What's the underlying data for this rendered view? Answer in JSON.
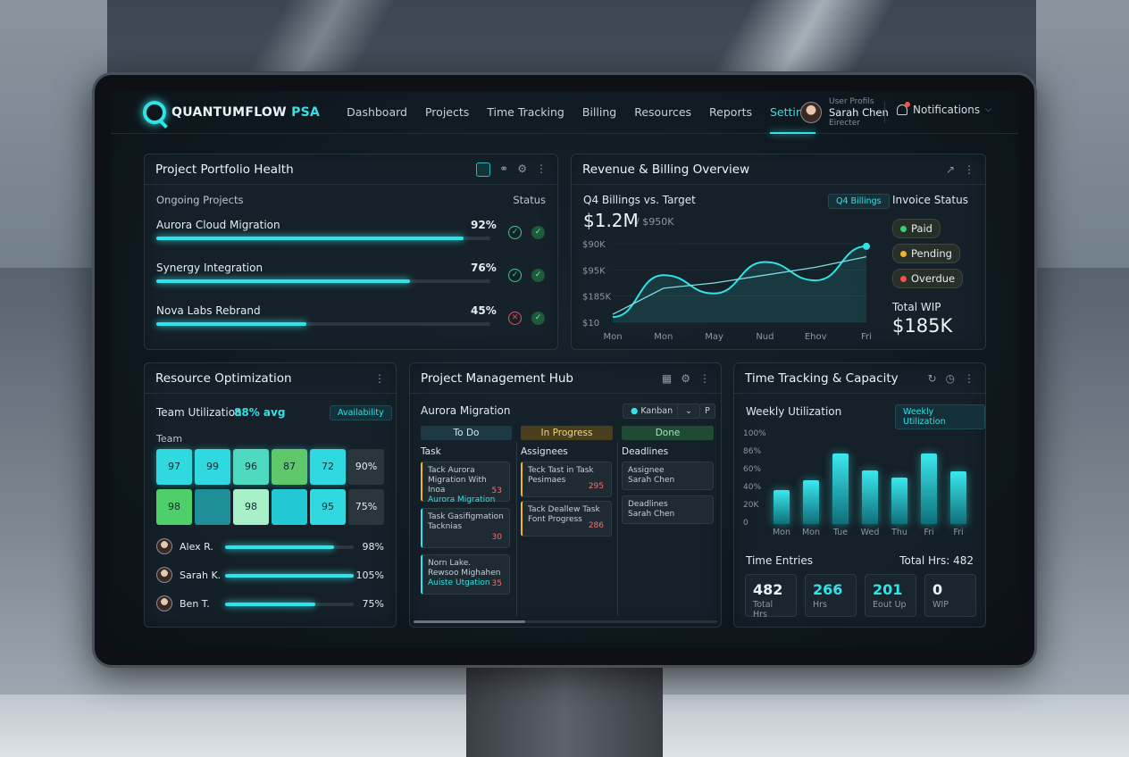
{
  "app": {
    "brand": "QUANTUMFLOW",
    "brand_suffix": "PSA"
  },
  "nav": {
    "items": [
      "Dashboard",
      "Projects",
      "Time Tracking",
      "Billing",
      "Resources",
      "Reports",
      "Settings"
    ],
    "active": "Settings"
  },
  "user": {
    "caption": "User Profils",
    "name": "Sarah Chen",
    "role": "Eirecter",
    "notifications_label": "Notifications"
  },
  "portfolio": {
    "title": "Project Portfolio Health",
    "col_left": "Ongoing Projects",
    "col_right": "Status",
    "projects": [
      {
        "name": "Aurora Cloud Migration",
        "pct": "92%",
        "fill": 0.92,
        "status": "ok"
      },
      {
        "name": "Synergy Integration",
        "pct": "76%",
        "fill": 0.76,
        "status": "ok"
      },
      {
        "name": "Nova Labs Rebrand",
        "pct": "45%",
        "fill": 0.45,
        "status": "error"
      }
    ]
  },
  "revenue": {
    "title": "Revenue & Billing Overview",
    "subtitle": "Q4 Billings vs. Target",
    "chip": "Q4 Billings",
    "amount": "$1.2M",
    "target": "/ $950K",
    "invoice_title": "Invoice Status",
    "invoice": [
      {
        "label": "Paid",
        "color": "#3ad07a"
      },
      {
        "label": "Pending",
        "color": "#f0b429"
      },
      {
        "label": "Overdue",
        "color": "#ff4b4b"
      }
    ],
    "wip_label": "Total WIP",
    "wip_value": "$185K"
  },
  "chart_data": {
    "type": "line",
    "x": [
      "Mon",
      "Mon",
      "May",
      "Nud",
      "Ehov",
      "Fri"
    ],
    "y_ticks": [
      "$90K",
      "$95K",
      "$185K",
      "$10"
    ],
    "series": [
      {
        "values": [
          0.2,
          1.8,
          1.1,
          2.3,
          1.6,
          2.9
        ]
      },
      {
        "values": [
          0.3,
          1.3,
          1.5,
          1.8,
          2.1,
          2.5
        ]
      }
    ]
  },
  "resources": {
    "title": "Resource Optimization",
    "util_label": "Team Utilization",
    "util_value": "88% avg",
    "chip": "Availability",
    "team_label": "Team",
    "heat_row1": [
      "97",
      "99",
      "96",
      "87",
      "72"
    ],
    "heat_row1_end": "90%",
    "heat_row2": [
      "98",
      "",
      "98",
      "",
      "95"
    ],
    "heat_row2_end": "75%",
    "people": [
      {
        "name": "Alex R.",
        "pct": "98%",
        "fill": 0.85
      },
      {
        "name": "Sarah K.",
        "pct": "105%",
        "fill": 1.0
      },
      {
        "name": "Ben T.",
        "pct": "75%",
        "fill": 0.7
      }
    ]
  },
  "hub": {
    "title": "Project Management Hub",
    "project": "Aurora Migration",
    "view": "Kanban",
    "view_btn2": "P",
    "columns": [
      "To Do",
      "In Progress",
      "Done"
    ],
    "sub_headers": [
      "Task",
      "Assignees",
      "Deadlines"
    ],
    "todo": [
      {
        "t": "Tack Aurora Migration With Inoa",
        "s": "Aurora Migration",
        "n": "53"
      },
      {
        "t": "Task Gasifigmation Tacknias",
        "s": "",
        "n": "30"
      },
      {
        "t": "Norn Lake. Rewsoo Mighahen",
        "s": "Auiste Utgation",
        "n": "35"
      }
    ],
    "progress": [
      {
        "t": "Teck Tast in Task Pesimaes",
        "n": "295"
      },
      {
        "t": "Tack Deallew Task Font Progress",
        "n": "286"
      }
    ],
    "done": [
      {
        "t": "Assignee",
        "s": "Sarah Chen"
      },
      {
        "t": "Deadlines",
        "s": "Sarah Chen"
      }
    ]
  },
  "time": {
    "title": "Time Tracking & Capacity",
    "weekly": "Weekly Utilization",
    "chip": "Weekly Utilization",
    "y_ticks": [
      "100%",
      "86%",
      "60%",
      "40%",
      "20K",
      "0"
    ],
    "days": [
      "Mon",
      "Mon",
      "Tue",
      "Wed",
      "Thu",
      "Fri",
      "Fri"
    ],
    "bars": [
      0.38,
      0.49,
      0.79,
      0.6,
      0.52,
      0.79,
      0.59
    ],
    "bars2": [
      0.28,
      0,
      0,
      0,
      0,
      0,
      0
    ],
    "entries_label": "Time Entries",
    "total": "Total Hrs: 482",
    "stats": [
      {
        "v": "482",
        "k": "Total Hrs",
        "c": "#e9f2f6"
      },
      {
        "v": "266",
        "k": "Hrs",
        "c": "#2fe3e8"
      },
      {
        "v": "201",
        "k": "Eout Up",
        "c": "#2fe3e8"
      },
      {
        "v": "0",
        "k": "WIP",
        "c": "#e9f2f6"
      }
    ]
  }
}
